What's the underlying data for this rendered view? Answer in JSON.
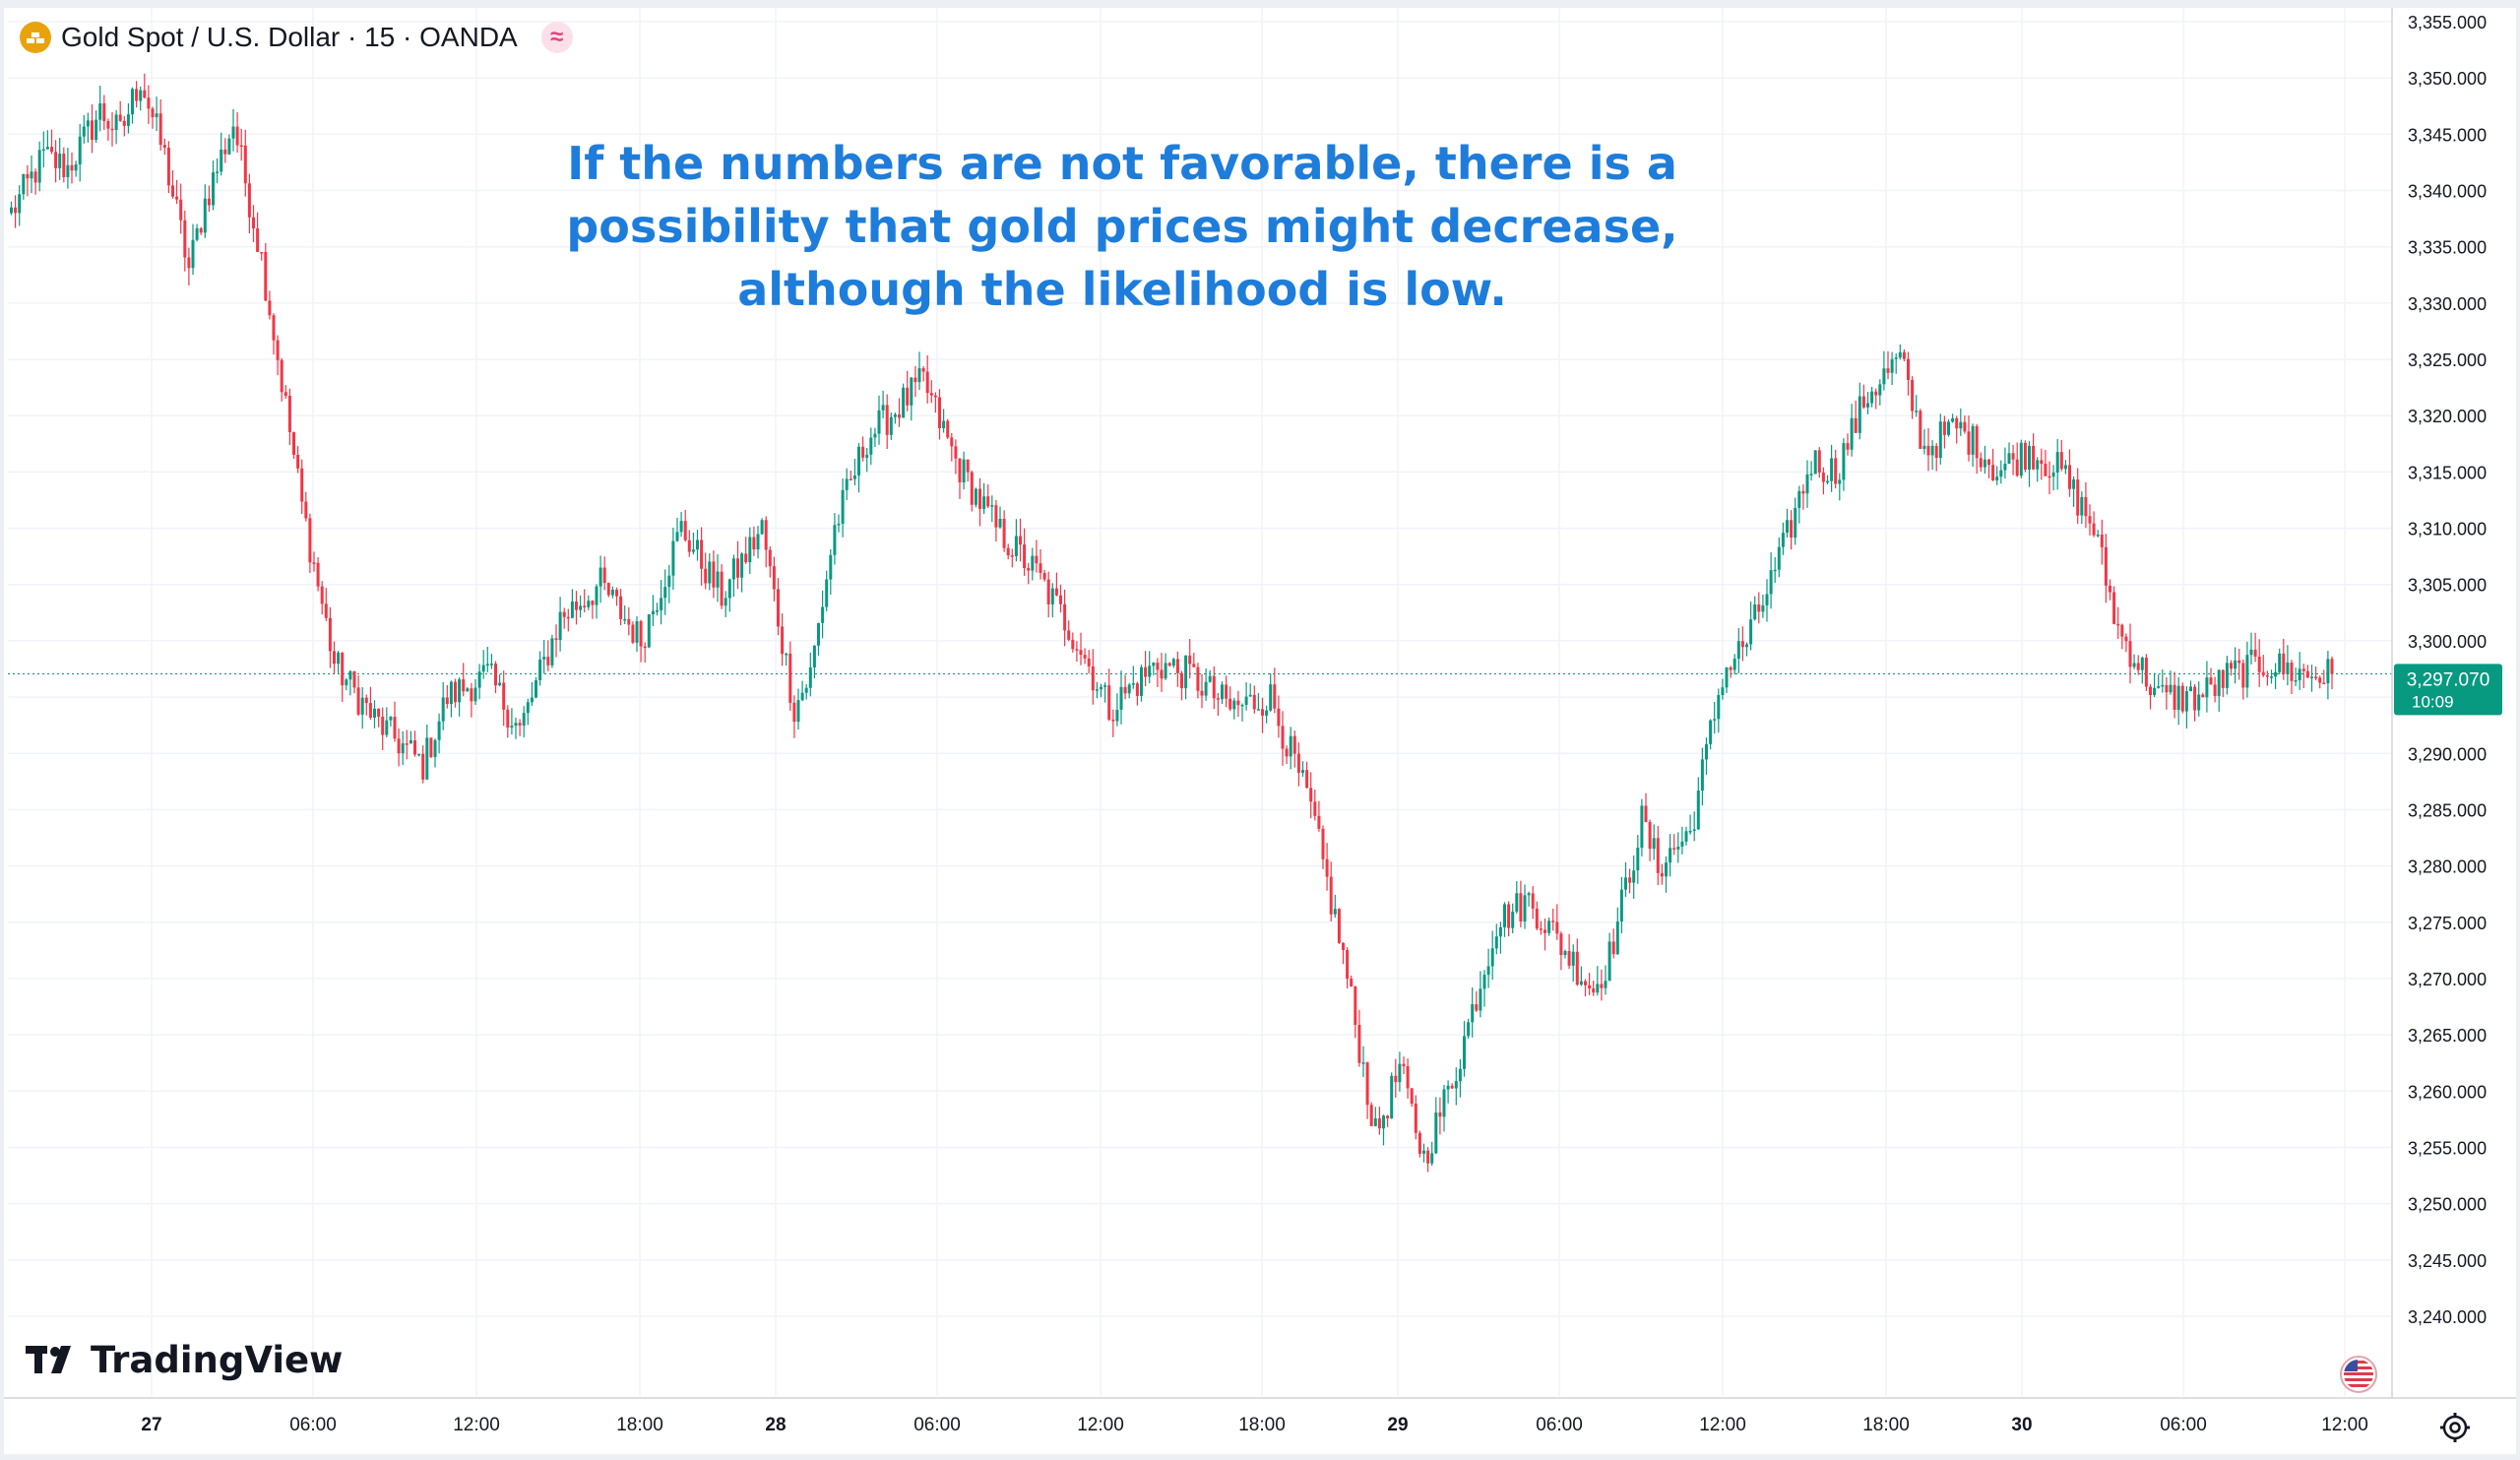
{
  "header": {
    "symbol": "Gold Spot / U.S. Dollar · 15 · OANDA",
    "symbol_icon": "gold-coin-icon",
    "indicator_icon": "wave-icon"
  },
  "annotation": {
    "lines": [
      "If the numbers are not favorable, there is a",
      "possibility that gold prices might decrease,",
      "although the likelihood is low."
    ]
  },
  "brand": {
    "logo_text": "TradingView"
  },
  "price_label": {
    "price": "3,297.070",
    "countdown": "10:09"
  },
  "colors": {
    "up": "#089981",
    "down": "#f23645",
    "grid": "#f0f3fa",
    "axis_text": "#131722",
    "annotation": "#1e7ddb",
    "price_line": "#089981"
  },
  "chart_data": {
    "type": "candlestick",
    "title": "",
    "xlabel": "",
    "ylabel": "",
    "ylim": [
      3238,
      3356
    ],
    "y_ticks": [
      "3,240.000",
      "3,245.000",
      "3,250.000",
      "3,255.000",
      "3,260.000",
      "3,265.000",
      "3,270.000",
      "3,275.000",
      "3,280.000",
      "3,285.000",
      "3,290.000",
      "3,295.000",
      "3,300.000",
      "3,305.000",
      "3,310.000",
      "3,315.000",
      "3,320.000",
      "3,325.000",
      "3,330.000",
      "3,335.000",
      "3,340.000",
      "3,345.000",
      "3,350.000",
      "3,355.000"
    ],
    "x_ticks": [
      "27",
      "06:00",
      "12:00",
      "18:00",
      "28",
      "06:00",
      "12:00",
      "18:00",
      "29",
      "06:00",
      "12:00",
      "18:00",
      "30",
      "06:00",
      "12:00"
    ],
    "x_tick_bold": [
      true,
      false,
      false,
      false,
      true,
      false,
      false,
      false,
      true,
      false,
      false,
      false,
      true,
      false,
      false
    ],
    "current_price": 3297.07,
    "close_path": [
      [
        0,
        3338
      ],
      [
        8,
        3343
      ],
      [
        14,
        3342
      ],
      [
        22,
        3347
      ],
      [
        27,
        3345
      ],
      [
        32,
        3350
      ],
      [
        38,
        3343
      ],
      [
        44,
        3333
      ],
      [
        48,
        3339
      ],
      [
        55,
        3346
      ],
      [
        62,
        3334
      ],
      [
        72,
        3312
      ],
      [
        80,
        3298
      ],
      [
        90,
        3293
      ],
      [
        102,
        3289
      ],
      [
        108,
        3295
      ],
      [
        118,
        3297
      ],
      [
        126,
        3292
      ],
      [
        136,
        3302
      ],
      [
        146,
        3305
      ],
      [
        156,
        3300
      ],
      [
        166,
        3310
      ],
      [
        176,
        3304
      ],
      [
        186,
        3310
      ],
      [
        194,
        3294
      ],
      [
        198,
        3297
      ],
      [
        204,
        3310
      ],
      [
        212,
        3318
      ],
      [
        226,
        3323
      ],
      [
        234,
        3316
      ],
      [
        244,
        3310
      ],
      [
        254,
        3306
      ],
      [
        264,
        3300
      ],
      [
        272,
        3294
      ],
      [
        284,
        3298
      ],
      [
        292,
        3297
      ],
      [
        302,
        3294
      ],
      [
        312,
        3295
      ],
      [
        322,
        3285
      ],
      [
        330,
        3272
      ],
      [
        338,
        3256
      ],
      [
        344,
        3262
      ],
      [
        350,
        3254
      ],
      [
        358,
        3262
      ],
      [
        368,
        3275
      ],
      [
        376,
        3277
      ],
      [
        384,
        3273
      ],
      [
        392,
        3269
      ],
      [
        396,
        3272
      ],
      [
        404,
        3284
      ],
      [
        408,
        3280
      ],
      [
        416,
        3283
      ],
      [
        424,
        3297
      ],
      [
        430,
        3300
      ],
      [
        438,
        3307
      ],
      [
        446,
        3316
      ],
      [
        452,
        3315
      ],
      [
        460,
        3322
      ],
      [
        468,
        3325
      ],
      [
        474,
        3317
      ],
      [
        482,
        3319
      ],
      [
        488,
        3317
      ],
      [
        492,
        3315
      ],
      [
        500,
        3317
      ],
      [
        508,
        3315
      ],
      [
        516,
        3310
      ],
      [
        522,
        3301
      ],
      [
        532,
        3295
      ],
      [
        542,
        3295
      ],
      [
        550,
        3297
      ],
      [
        558,
        3298
      ],
      [
        568,
        3297
      ],
      [
        575,
        3297
      ]
    ]
  }
}
